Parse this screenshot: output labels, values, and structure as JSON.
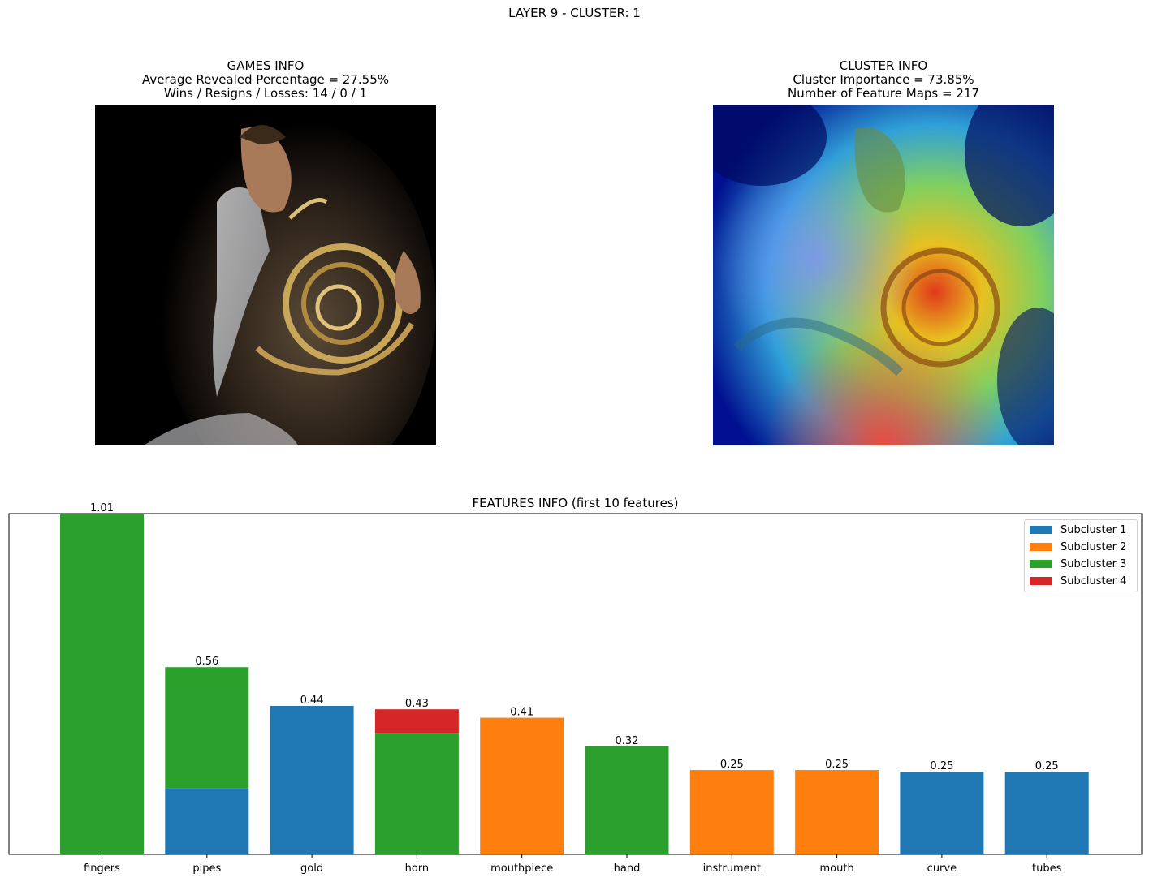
{
  "suptitle": "LAYER 9 - CLUSTER: 1",
  "games_info": {
    "title": "GAMES INFO",
    "line1": "Average Revealed Percentage = 27.55%",
    "line2": "Wins / Resigns / Losses: 14 / 0 / 1"
  },
  "cluster_info": {
    "title": "CLUSTER INFO",
    "line1": "Cluster Importance = 73.85%",
    "line2": "Number of Feature Maps = 217"
  },
  "colors": {
    "Subcluster 1": "#1f77b4",
    "Subcluster 2": "#ff7f0e",
    "Subcluster 3": "#2ca02c",
    "Subcluster 4": "#d62728"
  },
  "chart_data": {
    "type": "bar",
    "title": "FEATURES INFO (first 10 features)",
    "stacked": true,
    "categories": [
      "fingers",
      "pipes",
      "gold",
      "horn",
      "mouthpiece",
      "hand",
      "instrument",
      "mouth",
      "curve",
      "tubes"
    ],
    "totals": [
      "1.01",
      "0.56",
      "0.44",
      "0.43",
      "0.41",
      "0.32",
      "0.25",
      "0.25",
      "0.25",
      "0.25"
    ],
    "series": [
      {
        "name": "Subcluster 1",
        "values": [
          0,
          0.195,
          0.44,
          0,
          0,
          0,
          0,
          0,
          0.245,
          0.245
        ]
      },
      {
        "name": "Subcluster 2",
        "values": [
          0,
          0,
          0,
          0,
          0.405,
          0,
          0.25,
          0.25,
          0,
          0
        ]
      },
      {
        "name": "Subcluster 3",
        "values": [
          1.01,
          0.36,
          0,
          0.36,
          0,
          0.32,
          0,
          0,
          0,
          0
        ]
      },
      {
        "name": "Subcluster 4",
        "values": [
          0,
          0,
          0,
          0.07,
          0,
          0,
          0,
          0,
          0,
          0
        ]
      }
    ],
    "ylim": [
      0,
      1.01
    ],
    "yticks": "hidden",
    "legend": "top-right"
  }
}
